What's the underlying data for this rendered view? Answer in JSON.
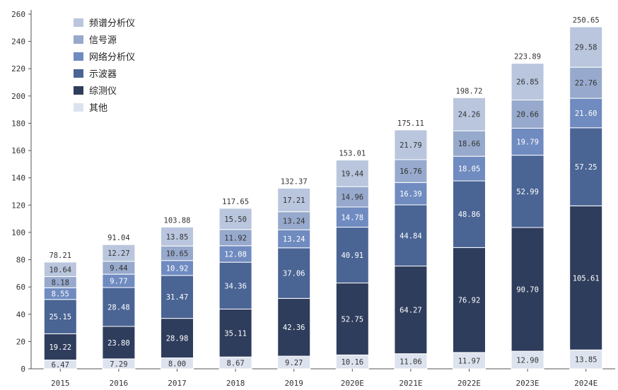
{
  "chart_data": {
    "type": "bar",
    "stacked": true,
    "categories": [
      "2015",
      "2016",
      "2017",
      "2018",
      "2019",
      "2020E",
      "2021E",
      "2022E",
      "2023E",
      "2024E"
    ],
    "totals": [
      78.21,
      91.04,
      103.88,
      117.65,
      132.37,
      153.01,
      175.11,
      198.72,
      223.89,
      250.65
    ],
    "total_labels": [
      "78.21",
      "91.04",
      "103.88",
      "117.65",
      "132.37",
      "153.01",
      "175.11",
      "198.72",
      "223.89",
      "250.65"
    ],
    "series": [
      {
        "name": "其他",
        "color": "#dde3ee",
        "text_color": "#333333",
        "values": [
          6.47,
          7.29,
          8.0,
          8.67,
          9.27,
          10.16,
          11.06,
          11.97,
          12.9,
          13.85
        ],
        "labels": [
          "6.47",
          "7.29",
          "8.00",
          "8.67",
          "9.27",
          "10.16",
          "11.06",
          "11.97",
          "12.90",
          "13.85"
        ]
      },
      {
        "name": "综测仪",
        "color": "#2f3d5c",
        "text_color": "#ffffff",
        "values": [
          19.22,
          23.8,
          28.98,
          35.11,
          42.36,
          52.75,
          64.27,
          76.92,
          90.7,
          105.61
        ],
        "labels": [
          "19.22",
          "23.80",
          "28.98",
          "35.11",
          "42.36",
          "52.75",
          "64.27",
          "76.92",
          "90.70",
          "105.61"
        ]
      },
      {
        "name": "示波器",
        "color": "#4a6494",
        "text_color": "#ffffff",
        "values": [
          25.15,
          28.48,
          31.47,
          34.36,
          37.06,
          40.91,
          44.84,
          48.86,
          52.99,
          57.25
        ],
        "labels": [
          "25.15",
          "28.48",
          "31.47",
          "34.36",
          "37.06",
          "40.91",
          "44.84",
          "48.86",
          "52.99",
          "57.25"
        ]
      },
      {
        "name": "网络分析仪",
        "color": "#6f8bc0",
        "text_color": "#ffffff",
        "values": [
          8.55,
          9.77,
          10.92,
          12.08,
          13.24,
          14.78,
          16.39,
          18.05,
          19.79,
          21.6
        ],
        "labels": [
          "8.55",
          "9.77",
          "10.92",
          "12.08",
          "13.24",
          "14.78",
          "16.39",
          "18.05",
          "19.79",
          "21.60"
        ]
      },
      {
        "name": "信号源",
        "color": "#97a9cc",
        "text_color": "#333333",
        "values": [
          8.18,
          9.44,
          10.65,
          11.92,
          13.24,
          14.96,
          16.76,
          18.66,
          20.66,
          22.76
        ],
        "labels": [
          "8.18",
          "9.44",
          "10.65",
          "11.92",
          "13.24",
          "14.96",
          "16.76",
          "18.66",
          "20.66",
          "22.76"
        ]
      },
      {
        "name": "频谱分析仪",
        "color": "#b9c6de",
        "text_color": "#333333",
        "values": [
          10.64,
          12.27,
          13.85,
          15.5,
          17.21,
          19.44,
          21.79,
          24.26,
          26.85,
          29.58
        ],
        "labels": [
          "10.64",
          "12.27",
          "13.85",
          "15.50",
          "17.21",
          "19.44",
          "21.79",
          "24.26",
          "26.85",
          "29.58"
        ]
      }
    ],
    "legend": {
      "position": "top-left",
      "order": [
        "频谱分析仪",
        "信号源",
        "网络分析仪",
        "示波器",
        "综测仪",
        "其他"
      ]
    },
    "y_ticks": [
      "0",
      "20",
      "40",
      "60",
      "80",
      "100",
      "120",
      "140",
      "160",
      "180",
      "200",
      "220",
      "240",
      "260"
    ],
    "ylim": [
      0,
      260
    ],
    "grid": false,
    "title": "",
    "xlabel": "",
    "ylabel": ""
  }
}
